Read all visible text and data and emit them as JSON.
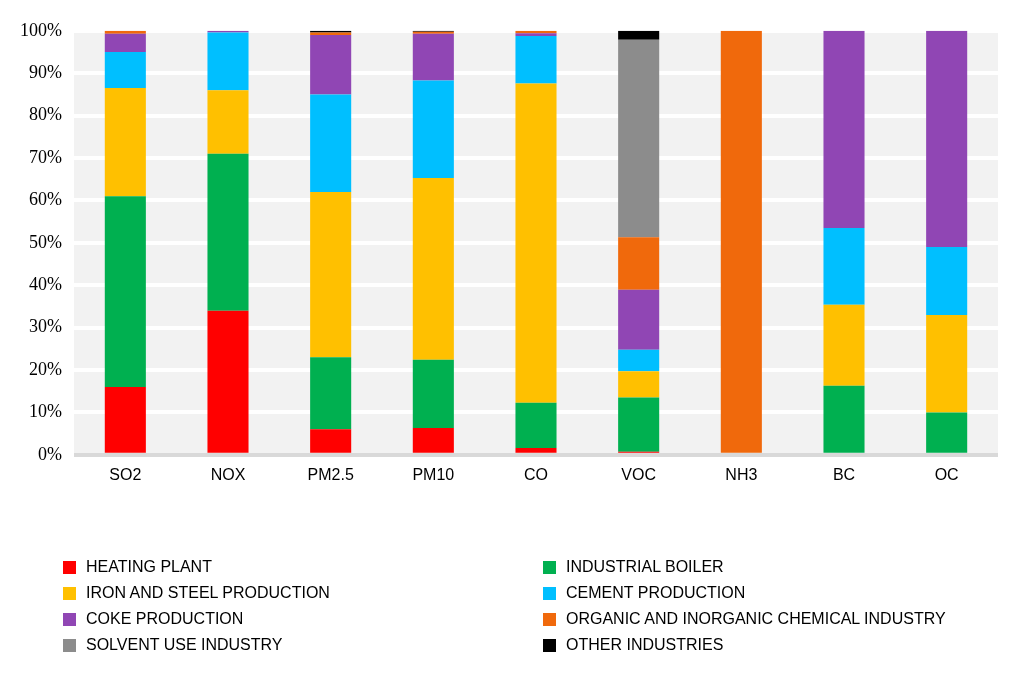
{
  "chart_data": {
    "type": "bar",
    "stacked": true,
    "categories": [
      "SO2",
      "NOX",
      "PM2.5",
      "PM10",
      "CO",
      "VOC",
      "NH3",
      "BC",
      "OC"
    ],
    "series": [
      {
        "name": "HEATING PLANT",
        "color": "#ff0000",
        "values": [
          16,
          34,
          6,
          6.3,
          1.6,
          0.7,
          0,
          0,
          0
        ]
      },
      {
        "name": "INDUSTRIAL BOILER",
        "color": "#00b050",
        "values": [
          45,
          37,
          17,
          16.1,
          10.7,
          12.8,
          0,
          16.3,
          10
        ]
      },
      {
        "name": "IRON AND STEEL PRODUCTION",
        "color": "#ffc000",
        "values": [
          25.5,
          15,
          39,
          42.9,
          75.3,
          6.2,
          0,
          19.1,
          23
        ]
      },
      {
        "name": "CEMENT PRODUCTION",
        "color": "#00bfff",
        "values": [
          8.5,
          13.6,
          23,
          23,
          11.2,
          5.1,
          0,
          18.1,
          16
        ]
      },
      {
        "name": "COKE PRODUCTION",
        "color": "#9046b4",
        "values": [
          4.3,
          0.4,
          14,
          11,
          0.6,
          14.1,
          0,
          46.5,
          51
        ]
      },
      {
        "name": "ORGANIC AND INORGANIC CHEMICAL INDUSTRY",
        "color": "#f0690c",
        "values": [
          0.7,
          0,
          0.6,
          0.5,
          0.6,
          12.4,
          100,
          0,
          0
        ]
      },
      {
        "name": "SOLVENT USE INDUSTRY",
        "color": "#8c8c8c",
        "values": [
          0,
          0,
          0,
          0,
          0,
          46.6,
          0,
          0,
          0
        ]
      },
      {
        "name": "OTHER INDUSTRIES",
        "color": "#000000",
        "values": [
          0,
          0,
          0.4,
          0.2,
          0,
          2.1,
          0,
          0,
          0
        ]
      }
    ],
    "ylim": [
      0,
      100
    ],
    "yticks": [
      {
        "value": 0,
        "label": "0%"
      },
      {
        "value": 10,
        "label": "10%"
      },
      {
        "value": 20,
        "label": "20%"
      },
      {
        "value": 30,
        "label": "30%"
      },
      {
        "value": 40,
        "label": "40%"
      },
      {
        "value": 50,
        "label": "50%"
      },
      {
        "value": 60,
        "label": "60%"
      },
      {
        "value": 70,
        "label": "70%"
      },
      {
        "value": 80,
        "label": "80%"
      },
      {
        "value": 90,
        "label": "90%"
      },
      {
        "value": 100,
        "label": "100%"
      }
    ],
    "grid": "y",
    "legend": "bottom"
  }
}
